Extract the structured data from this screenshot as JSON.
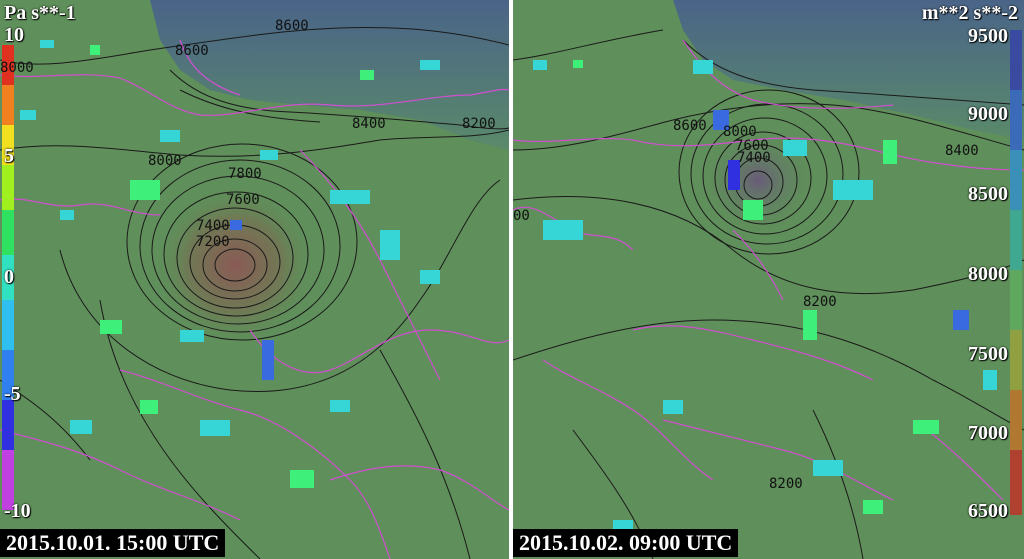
{
  "left_panel": {
    "unit": "Pa s**-1",
    "timestamp": "2015.10.01. 15:00 UTC",
    "scale_labels": [
      "10",
      "5",
      "0",
      "-5",
      "-10"
    ],
    "contour_labels": [
      "8600",
      "8600",
      "8400",
      "8200",
      "8000",
      "7800",
      "7600",
      "7400",
      "7200",
      "8000"
    ]
  },
  "right_panel": {
    "unit": "m**2 s**-2",
    "timestamp": "2015.10.02. 09:00 UTC",
    "scale_labels": [
      "9500",
      "9000",
      "8500",
      "8000",
      "7500",
      "7000",
      "6500"
    ],
    "contour_labels": [
      "8600",
      "8400",
      "8000",
      "7600",
      "7400",
      "8200",
      "8200",
      "00"
    ]
  },
  "colors": {
    "background_green": "#5f8f5a",
    "alpine_blue": "#4a6488",
    "border_magenta": "#d050d0",
    "contour": "#1a1a1a"
  }
}
